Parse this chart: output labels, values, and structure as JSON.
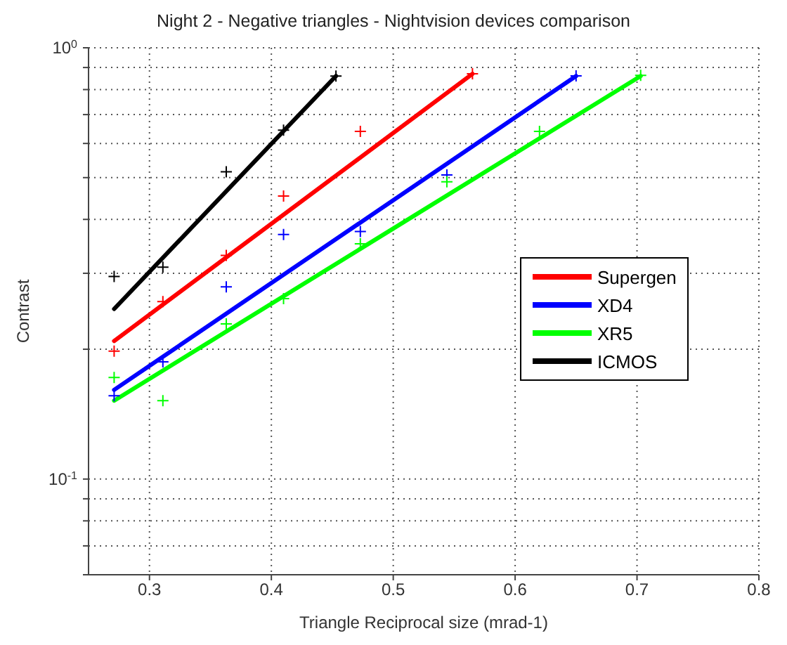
{
  "chart_data": {
    "type": "line",
    "title": "Night 2 - Negative triangles - Nightvision devices comparison",
    "xlabel": "Triangle Reciprocal size (mrad-1)",
    "ylabel": "Contrast",
    "xlim": [
      0.25,
      0.8
    ],
    "xticks": [
      0.3,
      0.4,
      0.5,
      0.6,
      0.7,
      0.8
    ],
    "ylim": [
      0.06,
      1
    ],
    "log": "y",
    "yticks": [
      {
        "value": 0.06,
        "label": null
      },
      {
        "value": 0.07,
        "label": null
      },
      {
        "value": 0.08,
        "label": null
      },
      {
        "value": 0.09,
        "label": null
      },
      {
        "value": 0.1,
        "label": "10$^{-1}$"
      },
      {
        "value": 0.2,
        "label": null
      },
      {
        "value": 0.3,
        "label": null
      },
      {
        "value": 0.4,
        "label": null
      },
      {
        "value": 0.5,
        "label": null
      },
      {
        "value": 0.6,
        "label": null
      },
      {
        "value": 0.7,
        "label": null
      },
      {
        "value": 0.8,
        "label": null
      },
      {
        "value": 0.9,
        "label": null
      },
      {
        "value": 1,
        "label": "10$^{0}$"
      }
    ],
    "grid": true,
    "legend": "right",
    "series": [
      {
        "name": "Supergen",
        "marker": "none",
        "color": "#ff0000",
        "x": [
          0.271,
          0.565
        ],
        "values": [
          0.209,
          0.87
        ]
      },
      {
        "name": "XD4",
        "marker": "none",
        "color": "#0000ff",
        "x": [
          0.271,
          0.65
        ],
        "values": [
          0.161,
          0.86
        ]
      },
      {
        "name": "XR5",
        "marker": "none",
        "color": "#00ff00",
        "x": [
          0.271,
          0.703
        ],
        "values": [
          0.152,
          0.86
        ]
      },
      {
        "name": "ICMOS",
        "marker": "none",
        "color": "#000000",
        "x": [
          0.271,
          0.453
        ],
        "values": [
          0.248,
          0.86
        ]
      },
      {
        "type": "scatter",
        "marker": "cross",
        "color": "#ff0000",
        "x": [
          0.271,
          0.311,
          0.363,
          0.41,
          0.473,
          0.565
        ],
        "values": [
          0.198,
          0.258,
          0.33,
          0.453,
          0.64,
          0.87
        ]
      },
      {
        "type": "scatter",
        "marker": "cross",
        "color": "#0000ff",
        "x": [
          0.271,
          0.311,
          0.363,
          0.41,
          0.473,
          0.544,
          0.65
        ],
        "values": [
          0.156,
          0.187,
          0.279,
          0.369,
          0.375,
          0.507,
          0.861
        ]
      },
      {
        "type": "scatter",
        "marker": "cross",
        "color": "#00ff00",
        "x": [
          0.271,
          0.311,
          0.363,
          0.41,
          0.473,
          0.544,
          0.62,
          0.703
        ],
        "values": [
          0.172,
          0.152,
          0.229,
          0.262,
          0.351,
          0.489,
          0.64,
          0.863
        ]
      },
      {
        "type": "scatter",
        "marker": "cross",
        "color": "#000000",
        "x": [
          0.271,
          0.311,
          0.363,
          0.41,
          0.453
        ],
        "values": [
          0.295,
          0.31,
          0.516,
          0.644,
          0.86
        ]
      }
    ]
  }
}
